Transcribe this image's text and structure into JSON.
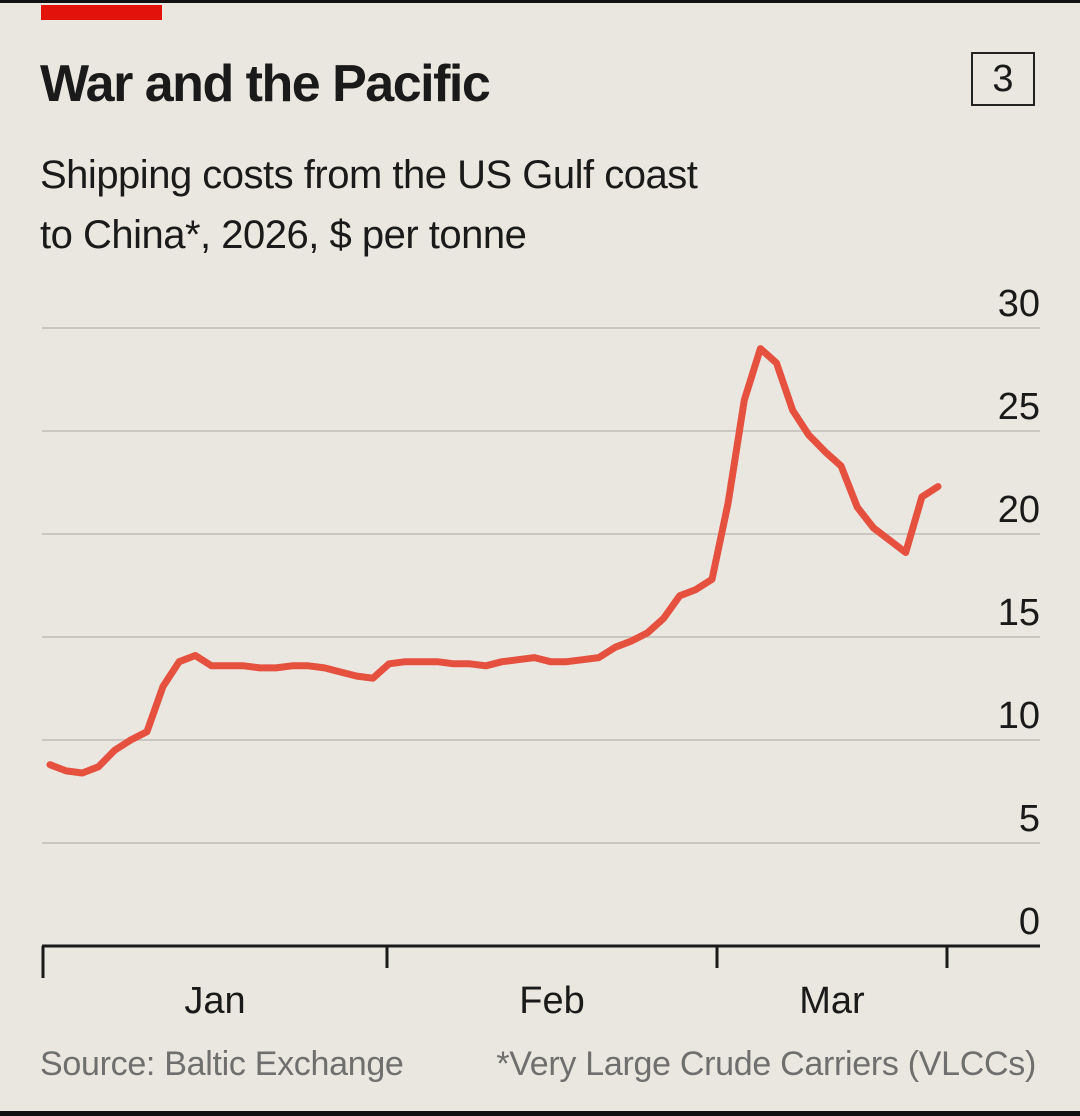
{
  "header": {
    "title": "War and the Pacific",
    "chart_number": "3",
    "subtitle_line1": "Shipping costs from the US Gulf coast",
    "subtitle_line2": "to China*, 2026, $ per tonne"
  },
  "footer": {
    "source": "Source: Baltic Exchange",
    "note": "*Very Large Crude Carriers (VLCCs)"
  },
  "colors": {
    "background": "#e9e7e0",
    "line": "#e5503f",
    "brand_red": "#e3120b",
    "grid": "#c9c7c0"
  },
  "chart_data": {
    "type": "line",
    "title": "Shipping costs from the US Gulf coast to China*, 2026, $ per tonne",
    "xlabel": "",
    "ylabel": "",
    "ylim": [
      0,
      30
    ],
    "y_ticks": [
      0,
      5,
      10,
      15,
      20,
      25,
      30
    ],
    "y_tick_labels": [
      "0",
      "5",
      "10",
      "15",
      "20",
      "25",
      "30"
    ],
    "y_axis_position": "right",
    "grid": true,
    "x_month_labels": [
      "Jan",
      "Feb",
      "Mar"
    ],
    "series": [
      {
        "values": [
          8.8,
          8.5,
          8.4,
          8.7,
          9.5,
          10.0,
          10.4,
          12.6,
          13.8,
          14.1,
          13.6,
          13.6,
          13.6,
          13.5,
          13.5,
          13.6,
          13.6,
          13.5,
          13.3,
          13.1,
          13.0,
          13.7,
          13.8,
          13.8,
          13.8,
          13.7,
          13.7,
          13.6,
          13.8,
          13.9,
          14.0,
          13.8,
          13.8,
          13.9,
          14.0,
          14.5,
          14.8,
          15.2,
          15.9,
          17.0,
          17.3,
          17.8,
          21.5,
          26.5,
          29.0,
          28.3,
          26.0,
          24.8,
          24.0,
          23.3,
          21.3,
          20.3,
          19.7,
          19.1,
          21.8,
          22.3
        ]
      }
    ]
  }
}
